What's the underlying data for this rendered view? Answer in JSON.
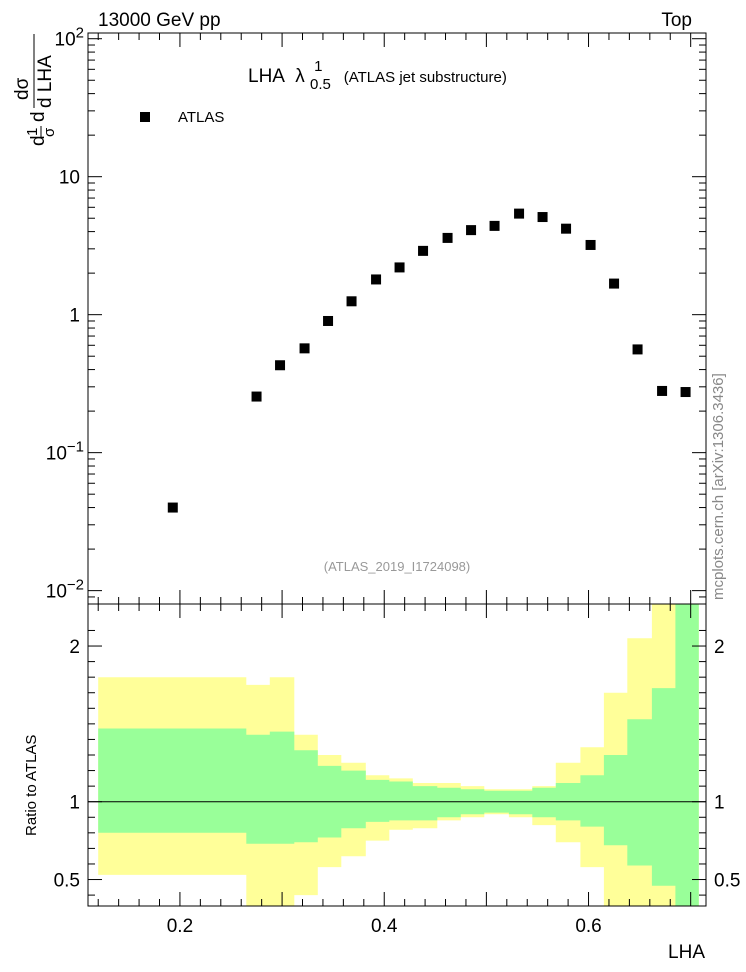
{
  "header": {
    "left": "13000 GeV pp",
    "right": "Top"
  },
  "colors": {
    "outer_band": "#ffff99",
    "inner_band": "#99ff99",
    "marker": "#000000",
    "reference_line": "#000000"
  },
  "side_label": "mcplots.cern.ch [arXiv:1306.3436]",
  "chart_data": [
    {
      "type": "scatter",
      "title_main": "LHA",
      "title_lambda": "λ",
      "title_sub": "0.5",
      "title_sup": "1",
      "title_tail": "(ATLAS jet substructure)",
      "ylabel_parts": {
        "a": "d",
        "b": "1",
        "c": "σ",
        "d": "d",
        "e": "dσ",
        "f": "d LHA"
      },
      "analysis_id": "(ATLAS_2019_I1724098)",
      "yscale": "log",
      "ylim": [
        0.008,
        110
      ],
      "xlim": [
        0.11,
        0.715
      ],
      "legend": {
        "placement": "top-left",
        "entries": [
          {
            "name": "ATLAS",
            "marker": "square"
          }
        ]
      },
      "series": [
        {
          "name": "ATLAS",
          "x": [
            0.193,
            0.275,
            0.298,
            0.322,
            0.345,
            0.368,
            0.392,
            0.415,
            0.438,
            0.462,
            0.485,
            0.508,
            0.532,
            0.555,
            0.578,
            0.602,
            0.625,
            0.648,
            0.672,
            0.695
          ],
          "y": [
            0.04,
            0.255,
            0.43,
            0.57,
            0.9,
            1.25,
            1.8,
            2.2,
            2.9,
            3.6,
            4.1,
            4.4,
            5.4,
            5.1,
            4.2,
            3.2,
            1.68,
            0.56,
            0.28,
            0.275
          ]
        }
      ],
      "yticks": [
        {
          "value": 0.01,
          "base": "10",
          "exp": "−2"
        },
        {
          "value": 0.1,
          "base": "10",
          "exp": "−1"
        },
        {
          "value": 1,
          "text": "1"
        },
        {
          "value": 10,
          "text": "10"
        },
        {
          "value": 100,
          "base": "10",
          "exp": "2"
        }
      ]
    },
    {
      "type": "area",
      "ylabel": "Ratio to ATLAS",
      "xlabel": "LHA",
      "ylim": [
        0.33,
        2.27
      ],
      "xlim": [
        0.11,
        0.715
      ],
      "reference_value": 1,
      "yticks": [
        0.5,
        1,
        2
      ],
      "ytick_labels": [
        "0.5",
        "1",
        "2"
      ],
      "xticks": [
        0.2,
        0.4,
        0.6
      ],
      "xtick_labels": [
        "0.2",
        "0.4",
        "0.6"
      ],
      "band_edges": [
        0.12,
        0.265,
        0.288,
        0.312,
        0.335,
        0.358,
        0.382,
        0.405,
        0.428,
        0.452,
        0.475,
        0.498,
        0.522,
        0.545,
        0.568,
        0.592,
        0.615,
        0.638,
        0.662,
        0.685,
        0.708
      ],
      "outer_band": {
        "upper": [
          1.8,
          1.75,
          1.8,
          1.43,
          1.3,
          1.25,
          1.17,
          1.15,
          1.12,
          1.12,
          1.1,
          1.08,
          1.08,
          1.1,
          1.25,
          1.35,
          1.7,
          2.05,
          2.27,
          2.27
        ],
        "lower": [
          0.53,
          0.33,
          0.33,
          0.4,
          0.58,
          0.65,
          0.75,
          0.82,
          0.83,
          0.88,
          0.9,
          0.92,
          0.9,
          0.85,
          0.74,
          0.58,
          0.33,
          0.33,
          0.33,
          0.33
        ]
      },
      "inner_band": {
        "upper": [
          1.47,
          1.43,
          1.45,
          1.33,
          1.23,
          1.2,
          1.14,
          1.13,
          1.1,
          1.09,
          1.08,
          1.07,
          1.07,
          1.09,
          1.12,
          1.17,
          1.3,
          1.53,
          1.73,
          2.27
        ],
        "lower": [
          0.8,
          0.73,
          0.73,
          0.74,
          0.77,
          0.83,
          0.87,
          0.88,
          0.88,
          0.9,
          0.92,
          0.93,
          0.92,
          0.9,
          0.88,
          0.84,
          0.72,
          0.59,
          0.46,
          0.33
        ]
      }
    }
  ]
}
